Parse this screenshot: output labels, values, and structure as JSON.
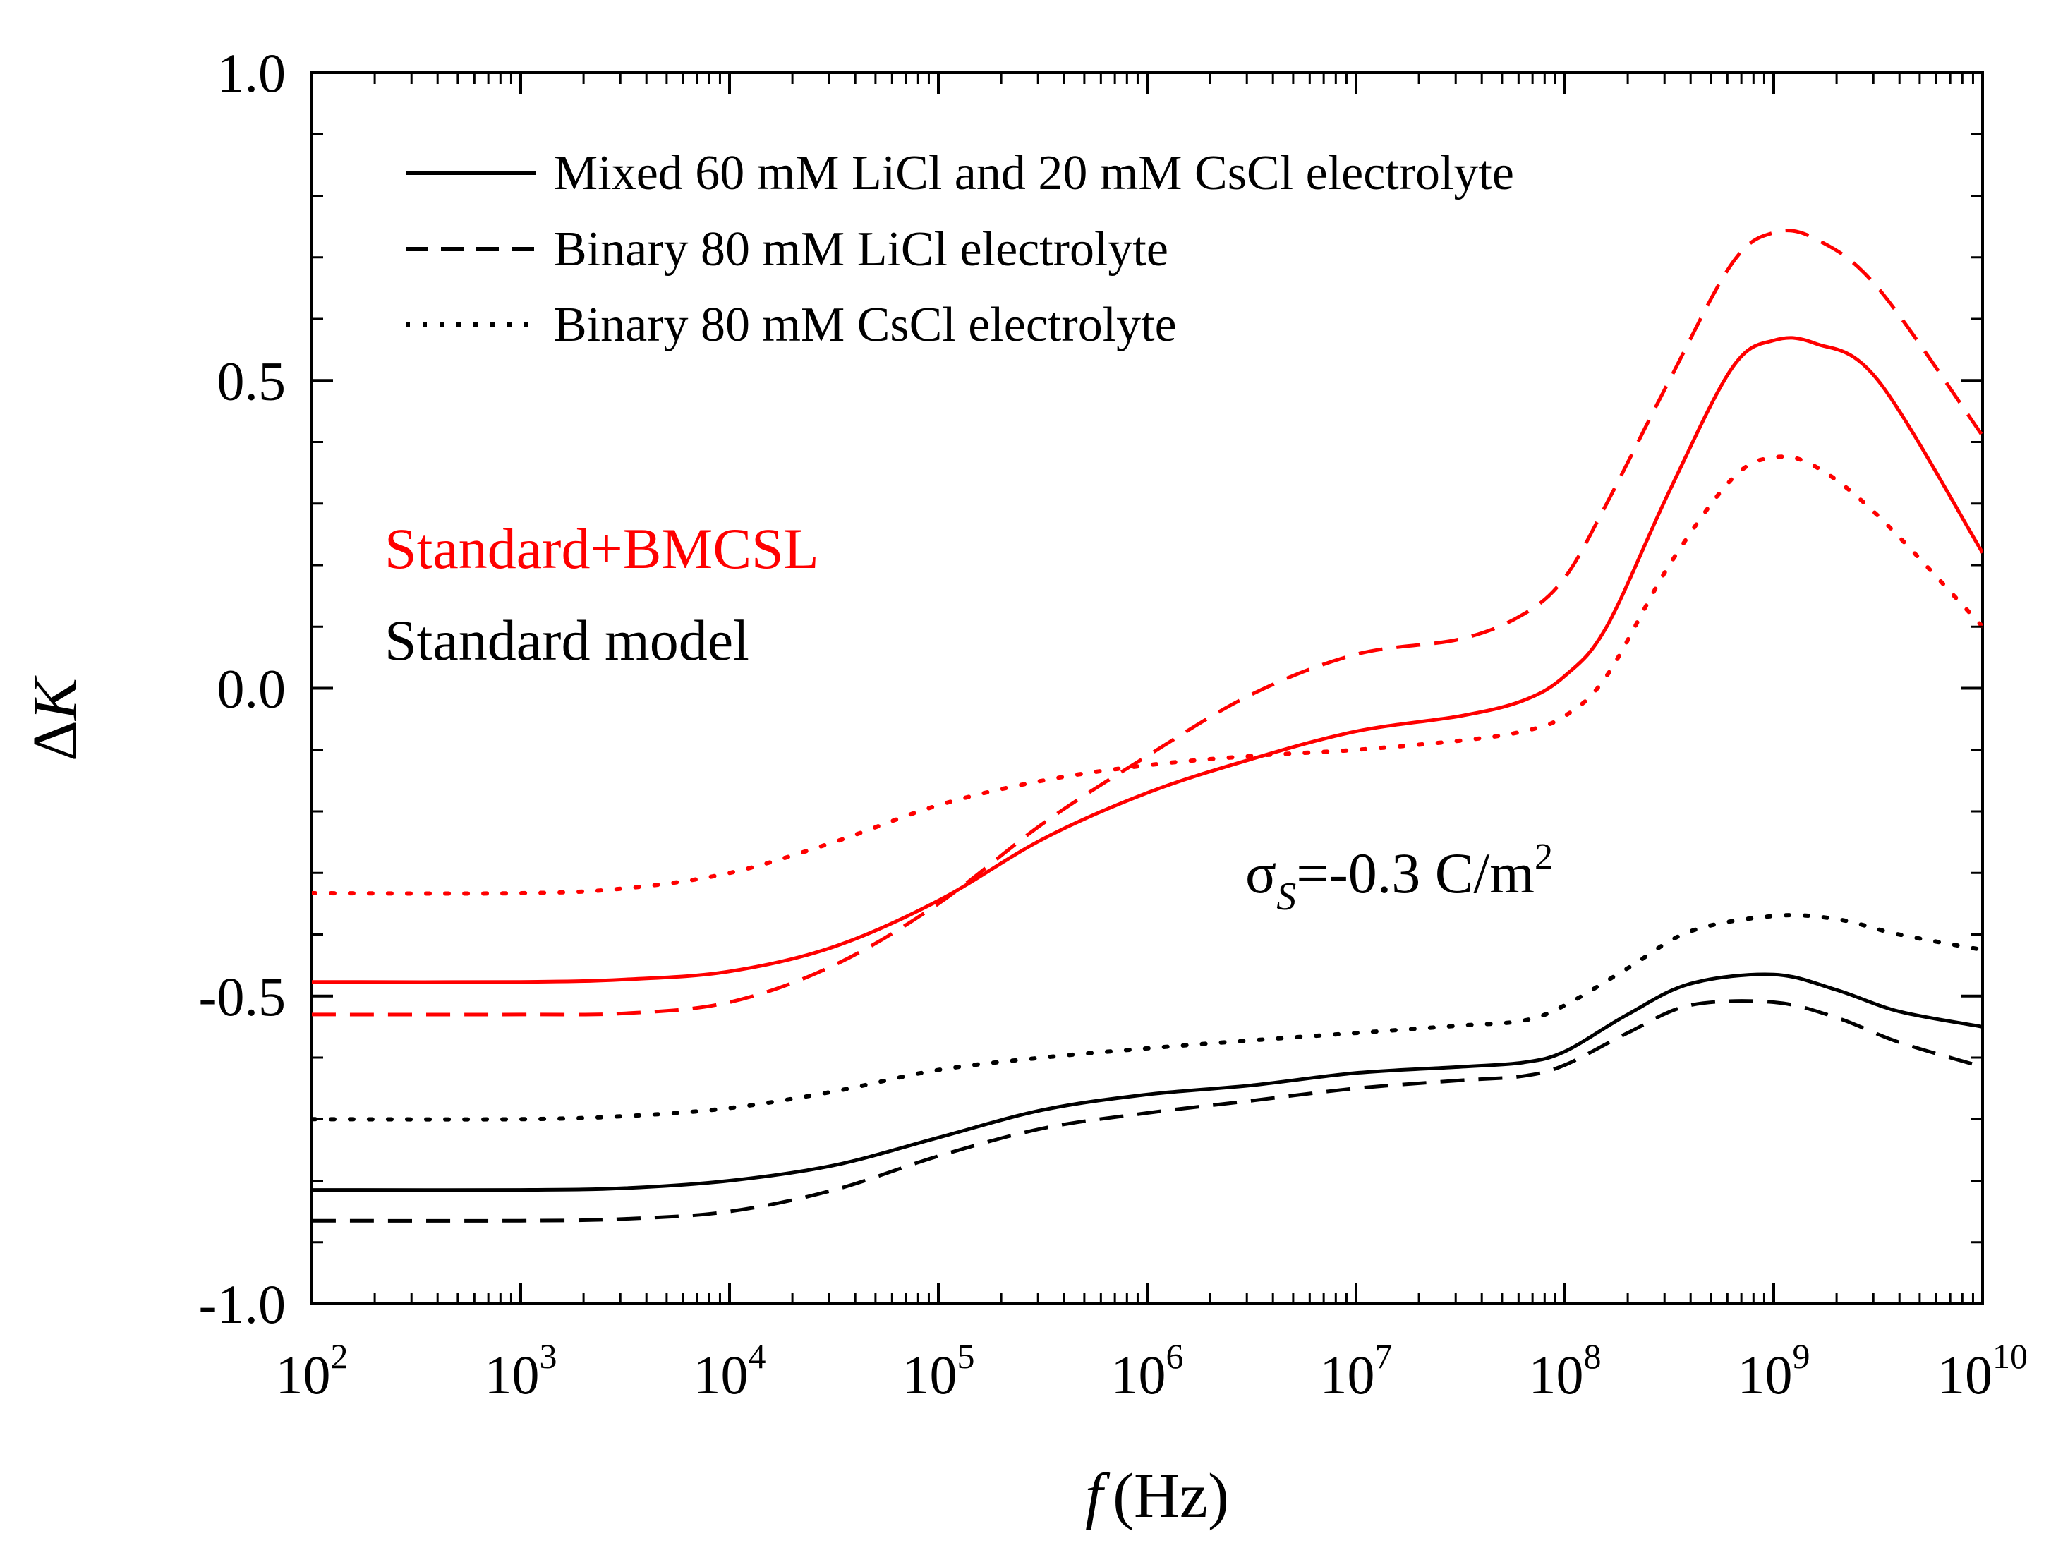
{
  "chart_data": {
    "type": "line",
    "xscale": "log",
    "xlim": [
      100,
      10000000000
    ],
    "ylim": [
      -1.0,
      1.0
    ],
    "xlabel_italic": "f",
    "xlabel_unit": "(Hz)",
    "ylabel_prefix": "Δ",
    "ylabel_italic": "K",
    "x_ticks": [
      {
        "base": "10",
        "exp": "2",
        "value": 100
      },
      {
        "base": "10",
        "exp": "3",
        "value": 1000
      },
      {
        "base": "10",
        "exp": "4",
        "value": 10000
      },
      {
        "base": "10",
        "exp": "5",
        "value": 100000
      },
      {
        "base": "10",
        "exp": "6",
        "value": 1000000
      },
      {
        "base": "10",
        "exp": "7",
        "value": 10000000
      },
      {
        "base": "10",
        "exp": "8",
        "value": 100000000
      },
      {
        "base": "10",
        "exp": "9",
        "value": 1000000000
      },
      {
        "base": "10",
        "exp": "10",
        "value": 10000000000
      }
    ],
    "y_ticks": [
      {
        "label": "1.0",
        "value": 1.0
      },
      {
        "label": "0.5",
        "value": 0.5
      },
      {
        "label": "0.0",
        "value": 0.0
      },
      {
        "label": "-0.5",
        "value": -0.5
      },
      {
        "label": "-1.0",
        "value": -1.0
      }
    ],
    "legend": [
      {
        "label": "Mixed 60 mM LiCl and 20 mM CsCl electrolyte",
        "style": "solid"
      },
      {
        "label": "Binary 80 mM LiCl electrolyte",
        "style": "dashed"
      },
      {
        "label": "Binary 80 mM CsCl electrolyte",
        "style": "dotted"
      }
    ],
    "model_labels": [
      {
        "label": "Standard+BMCSL",
        "color": "#ff0000"
      },
      {
        "label": "Standard model",
        "color": "#000000"
      }
    ],
    "annotation": {
      "sigma": "σ",
      "subscript": "S",
      "text": "=-0.3 C/m",
      "superscript": "2"
    },
    "series": [
      {
        "name": "Mixed 60 mM LiCl and 20 mM CsCl electrolyte",
        "model": "Standard+BMCSL",
        "color": "#ff0000",
        "style": "solid",
        "x_log10": [
          2,
          3,
          3.5,
          4,
          4.5,
          5,
          5.5,
          6,
          6.5,
          7,
          7.5,
          7.8,
          8,
          8.2,
          8.5,
          8.8,
          9,
          9.2,
          9.5,
          10
        ],
        "y": [
          -0.477,
          -0.477,
          -0.473,
          -0.46,
          -0.42,
          -0.345,
          -0.245,
          -0.17,
          -0.115,
          -0.07,
          -0.045,
          -0.02,
          0.02,
          0.1,
          0.32,
          0.52,
          0.565,
          0.56,
          0.5,
          0.22
        ]
      },
      {
        "name": "Binary 80 mM LiCl electrolyte",
        "model": "Standard+BMCSL",
        "color": "#ff0000",
        "style": "dashed",
        "x_log10": [
          2,
          3,
          3.5,
          4,
          4.5,
          5,
          5.5,
          6,
          6.5,
          7,
          7.5,
          7.8,
          8,
          8.2,
          8.5,
          8.8,
          9,
          9.2,
          9.5,
          10
        ],
        "y": [
          -0.53,
          -0.53,
          -0.528,
          -0.51,
          -0.45,
          -0.35,
          -0.22,
          -0.11,
          -0.01,
          0.055,
          0.08,
          0.12,
          0.18,
          0.3,
          0.5,
          0.69,
          0.74,
          0.73,
          0.65,
          0.41
        ]
      },
      {
        "name": "Binary 80 mM CsCl electrolyte",
        "model": "Standard+BMCSL",
        "color": "#ff0000",
        "style": "dotted",
        "x_log10": [
          2,
          3,
          3.5,
          4,
          4.5,
          5,
          5.5,
          6,
          6.5,
          7,
          7.5,
          7.8,
          8,
          8.2,
          8.5,
          8.8,
          9,
          9.2,
          9.5,
          10
        ],
        "y": [
          -0.333,
          -0.333,
          -0.325,
          -0.3,
          -0.25,
          -0.19,
          -0.15,
          -0.125,
          -0.11,
          -0.1,
          -0.085,
          -0.07,
          -0.045,
          0.02,
          0.2,
          0.34,
          0.375,
          0.36,
          0.28,
          0.1
        ]
      },
      {
        "name": "Mixed 60 mM LiCl and 20 mM CsCl electrolyte",
        "model": "Standard model",
        "color": "#000000",
        "style": "solid",
        "x_log10": [
          2,
          3,
          3.5,
          4,
          4.5,
          5,
          5.5,
          6,
          6.5,
          7,
          7.5,
          7.8,
          8,
          8.3,
          8.6,
          9,
          9.3,
          9.6,
          10
        ],
        "y": [
          -0.815,
          -0.815,
          -0.812,
          -0.8,
          -0.775,
          -0.73,
          -0.685,
          -0.66,
          -0.645,
          -0.625,
          -0.615,
          -0.608,
          -0.59,
          -0.53,
          -0.48,
          -0.465,
          -0.49,
          -0.525,
          -0.55
        ]
      },
      {
        "name": "Binary 80 mM LiCl electrolyte",
        "model": "Standard model",
        "color": "#000000",
        "style": "dashed",
        "x_log10": [
          2,
          3,
          3.5,
          4,
          4.5,
          5,
          5.5,
          6,
          6.5,
          7,
          7.5,
          7.8,
          8,
          8.3,
          8.6,
          9,
          9.3,
          9.6,
          10
        ],
        "y": [
          -0.865,
          -0.865,
          -0.862,
          -0.85,
          -0.815,
          -0.76,
          -0.715,
          -0.69,
          -0.67,
          -0.65,
          -0.637,
          -0.63,
          -0.612,
          -0.56,
          -0.515,
          -0.51,
          -0.535,
          -0.575,
          -0.615
        ]
      },
      {
        "name": "Binary 80 mM CsCl electrolyte",
        "model": "Standard model",
        "color": "#000000",
        "style": "dotted",
        "x_log10": [
          2,
          3,
          3.5,
          4,
          4.5,
          5,
          5.5,
          6,
          6.5,
          7,
          7.5,
          7.8,
          8,
          8.3,
          8.6,
          9,
          9.3,
          9.6,
          10
        ],
        "y": [
          -0.7,
          -0.7,
          -0.695,
          -0.682,
          -0.655,
          -0.62,
          -0.6,
          -0.585,
          -0.572,
          -0.56,
          -0.548,
          -0.54,
          -0.515,
          -0.455,
          -0.395,
          -0.37,
          -0.375,
          -0.4,
          -0.425
        ]
      }
    ]
  }
}
